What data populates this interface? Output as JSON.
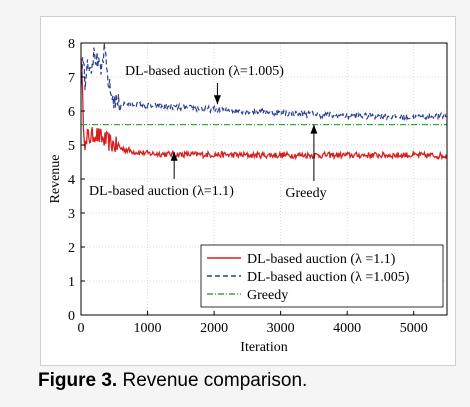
{
  "caption": {
    "label": "Figure 3.",
    "text": "Revenue comparison."
  },
  "chart_data": {
    "type": "line",
    "title": "",
    "xlabel": "Iteration",
    "ylabel": "Revenue",
    "xlim": [
      0,
      5500
    ],
    "ylim": [
      0,
      8
    ],
    "xticks": [
      0,
      1000,
      2000,
      3000,
      4000,
      5000
    ],
    "yticks": [
      0,
      1,
      2,
      3,
      4,
      5,
      6,
      7,
      8
    ],
    "grid": true,
    "legend": "bottom-right",
    "series": [
      {
        "name": "DL-based auction (λ =1.1)",
        "color": "#d42020",
        "style": "solid",
        "x": [
          0,
          20,
          40,
          60,
          80,
          100,
          150,
          200,
          300,
          400,
          500,
          600,
          700,
          800,
          1000,
          1500,
          2000,
          2500,
          3000,
          3500,
          4000,
          4500,
          5000,
          5500
        ],
        "y": [
          7.8,
          6.5,
          5.6,
          5.1,
          4.9,
          5.3,
          5.2,
          5.35,
          5.2,
          5.1,
          5.0,
          4.9,
          4.85,
          4.8,
          4.75,
          4.72,
          4.72,
          4.7,
          4.7,
          4.7,
          4.7,
          4.7,
          4.7,
          4.68
        ]
      },
      {
        "name": "DL-based auction (λ =1.005)",
        "color": "#2a3f8f",
        "style": "dashed",
        "x": [
          0,
          30,
          60,
          100,
          150,
          200,
          250,
          300,
          350,
          400,
          450,
          500,
          600,
          800,
          1000,
          1500,
          2000,
          2500,
          3000,
          3500,
          4000,
          4500,
          5000,
          5500
        ],
        "y": [
          6.8,
          7.6,
          6.9,
          7.5,
          7.3,
          7.7,
          7.4,
          7.1,
          7.8,
          7.0,
          6.5,
          6.3,
          6.2,
          6.2,
          6.15,
          6.1,
          6.05,
          6.0,
          5.95,
          5.9,
          5.85,
          5.85,
          5.82,
          5.85
        ]
      },
      {
        "name": "Greedy",
        "color": "#3aaa3a",
        "style": "dashdot",
        "x": [
          0,
          5500
        ],
        "y": [
          5.6,
          5.6
        ]
      }
    ],
    "annotations": [
      {
        "text": "DL-based auction (λ=1.005)",
        "arrow_to": [
          2050,
          6.2
        ]
      },
      {
        "text": "DL-based auction (λ=1.1)",
        "arrow_to": [
          1400,
          4.8
        ]
      },
      {
        "text": "Greedy",
        "arrow_to": [
          3500,
          5.6
        ]
      }
    ]
  }
}
